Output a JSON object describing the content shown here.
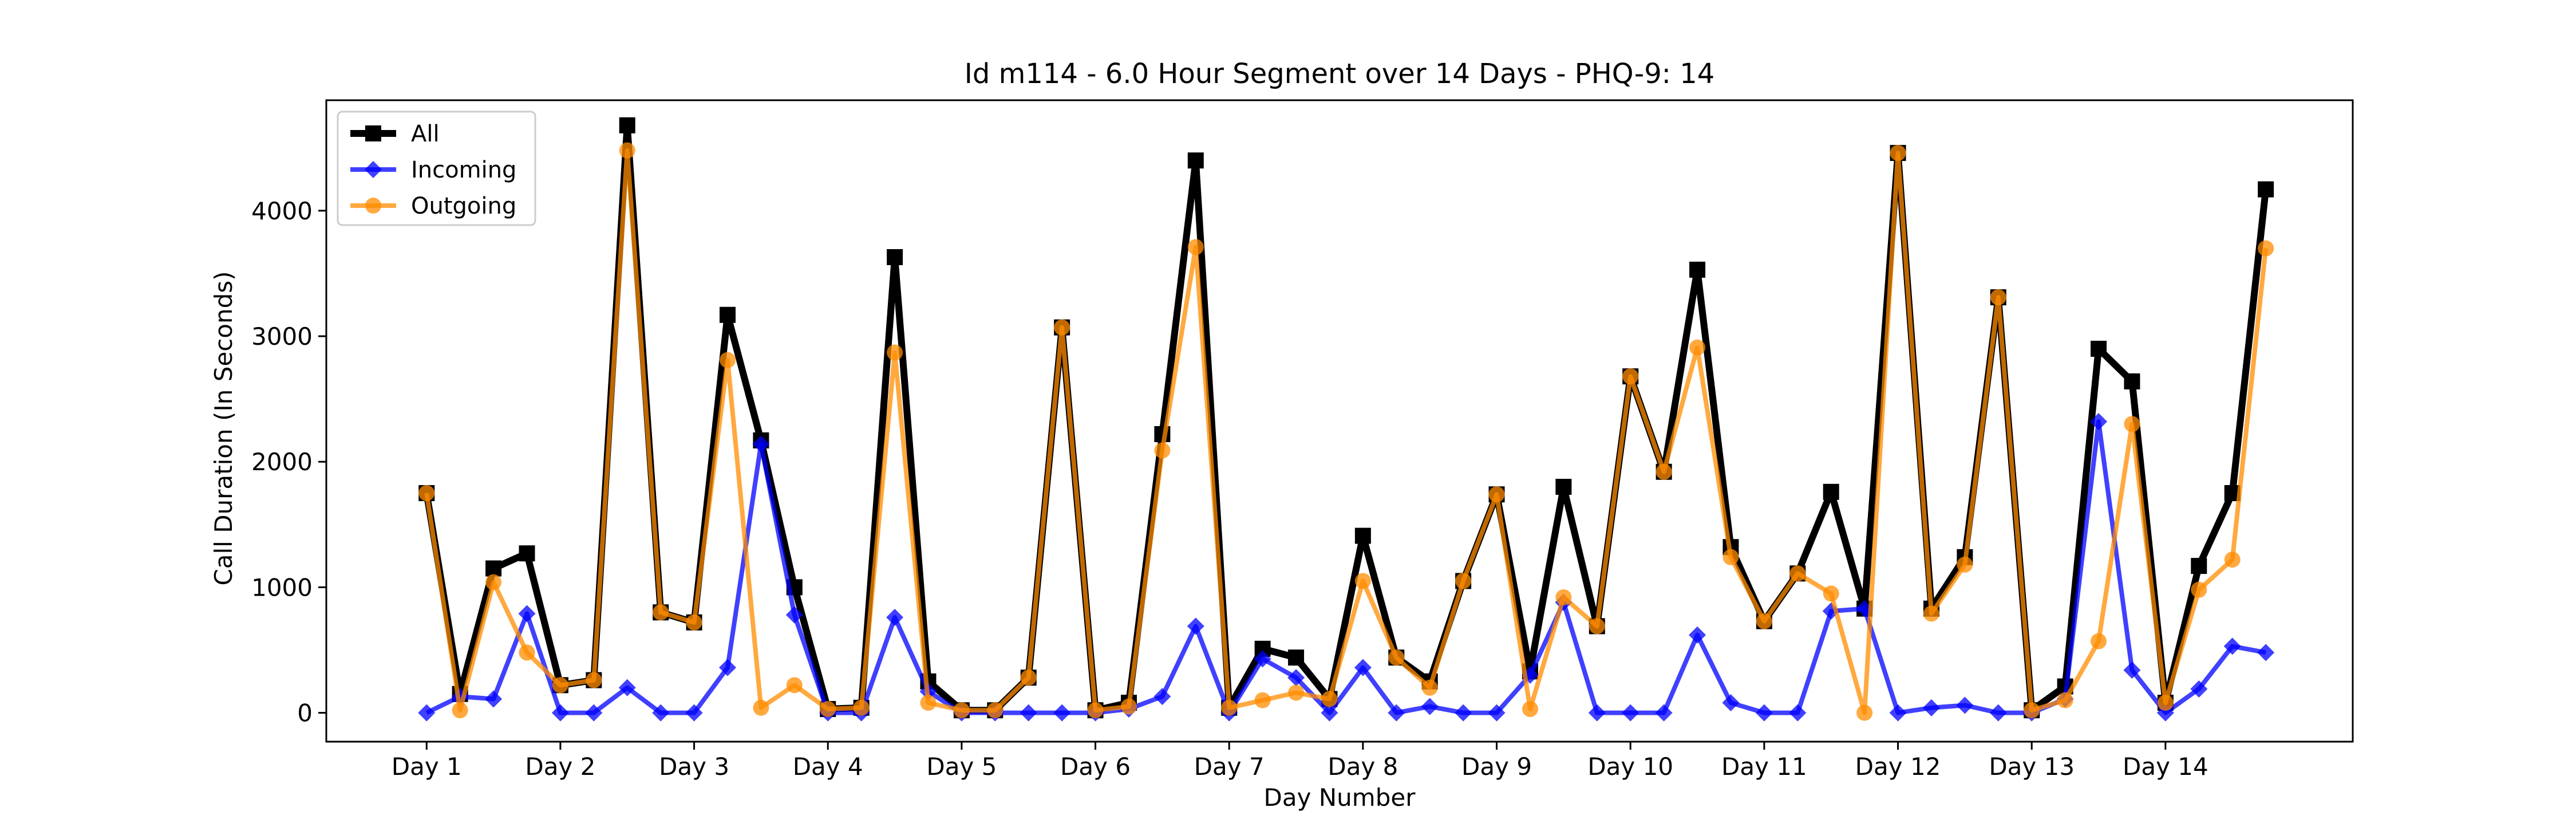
{
  "chart_data": {
    "type": "line",
    "title": "Id m114 - 6.0 Hour Segment over 14 Days - PHQ-9: 14",
    "xlabel": "Day Number",
    "ylabel": "Call Duration (In Seconds)",
    "xlim": [
      -0.75,
      14.4
    ],
    "ylim": [
      -230,
      4880
    ],
    "yticks": [
      0,
      1000,
      2000,
      3000,
      4000
    ],
    "xtick_positions": [
      0,
      1,
      2,
      3,
      4,
      5,
      6,
      7,
      8,
      9,
      10,
      11,
      12,
      13
    ],
    "xtick_labels": [
      "Day 1",
      "Day 2",
      "Day 3",
      "Day 4",
      "Day 5",
      "Day 6",
      "Day 7",
      "Day 8",
      "Day 9",
      "Day 10",
      "Day 11",
      "Day 12",
      "Day 13",
      "Day 14"
    ],
    "grid": false,
    "legend": "top-left",
    "x": [
      0,
      0.25,
      0.5,
      0.75,
      1,
      1.25,
      1.5,
      1.75,
      2,
      2.25,
      2.5,
      2.75,
      3,
      3.25,
      3.5,
      3.75,
      4,
      4.25,
      4.5,
      4.75,
      5,
      5.25,
      5.5,
      5.75,
      6,
      6.25,
      6.5,
      6.75,
      7,
      7.25,
      7.5,
      7.75,
      8,
      8.25,
      8.5,
      8.75,
      9,
      9.25,
      9.5,
      9.75,
      10,
      10.25,
      10.5,
      10.75,
      11,
      11.25,
      11.5,
      11.75,
      12,
      12.25,
      12.5,
      12.75,
      13,
      13.25,
      13.5,
      13.75
    ],
    "series": [
      {
        "name": "All",
        "color": "#000000",
        "marker": "square",
        "values": [
          1750,
          150,
          1150,
          1270,
          220,
          260,
          4680,
          800,
          720,
          3170,
          2170,
          1000,
          30,
          40,
          3630,
          250,
          20,
          20,
          280,
          3070,
          20,
          80,
          2220,
          4400,
          40,
          510,
          440,
          110,
          1410,
          440,
          250,
          1050,
          1740,
          330,
          1800,
          690,
          2680,
          1920,
          3530,
          1320,
          730,
          1110,
          1760,
          830,
          4460,
          830,
          1240,
          3310,
          20,
          210,
          2900,
          2640,
          80,
          1170,
          1750,
          4170
        ]
      },
      {
        "name": "Incoming",
        "color": "#0000ff",
        "marker": "diamond",
        "values": [
          0,
          130,
          110,
          790,
          0,
          0,
          200,
          0,
          0,
          360,
          2140,
          780,
          0,
          0,
          760,
          170,
          0,
          0,
          0,
          0,
          0,
          30,
          130,
          690,
          0,
          430,
          280,
          0,
          360,
          0,
          50,
          0,
          0,
          300,
          880,
          0,
          0,
          0,
          620,
          80,
          0,
          0,
          810,
          830,
          0,
          40,
          60,
          0,
          0,
          110,
          2320,
          340,
          0,
          190,
          530,
          480
        ]
      },
      {
        "name": "Outgoing",
        "color": "#ff8c00",
        "marker": "circle",
        "values": [
          1750,
          20,
          1040,
          480,
          220,
          260,
          4480,
          800,
          720,
          2810,
          40,
          220,
          30,
          40,
          2870,
          80,
          20,
          20,
          280,
          3070,
          20,
          50,
          2090,
          3710,
          40,
          100,
          160,
          110,
          1050,
          440,
          200,
          1050,
          1740,
          30,
          920,
          690,
          2680,
          1920,
          2910,
          1240,
          730,
          1110,
          950,
          0,
          4460,
          790,
          1180,
          3310,
          20,
          100,
          570,
          2300,
          80,
          980,
          1220,
          3700
        ]
      }
    ]
  }
}
